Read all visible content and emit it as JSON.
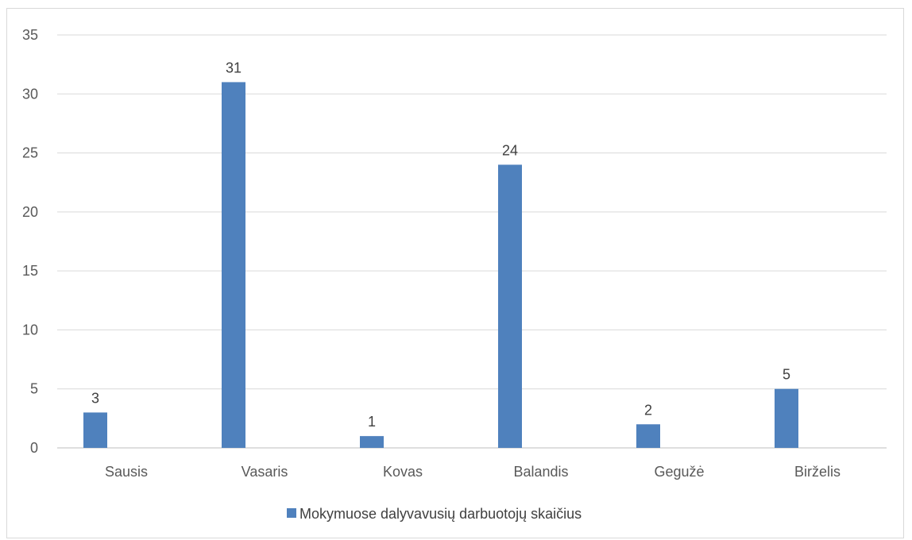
{
  "chart_data": {
    "type": "bar",
    "categories": [
      "Sausis",
      "Vasaris",
      "Kovas",
      "Balandis",
      "Gegužė",
      "Birželis"
    ],
    "series": [
      {
        "name": "Mokymuose dalyvavusių darbuotojų skaičius",
        "values": [
          3,
          31,
          1,
          24,
          2,
          5
        ],
        "color": "#4f81bd"
      }
    ],
    "ylim": [
      0,
      35
    ],
    "yticks": [
      0,
      5,
      10,
      15,
      20,
      25,
      30,
      35
    ],
    "grid": true,
    "legend_position": "bottom",
    "data_labels": true,
    "title": "",
    "xlabel": "",
    "ylabel": ""
  }
}
